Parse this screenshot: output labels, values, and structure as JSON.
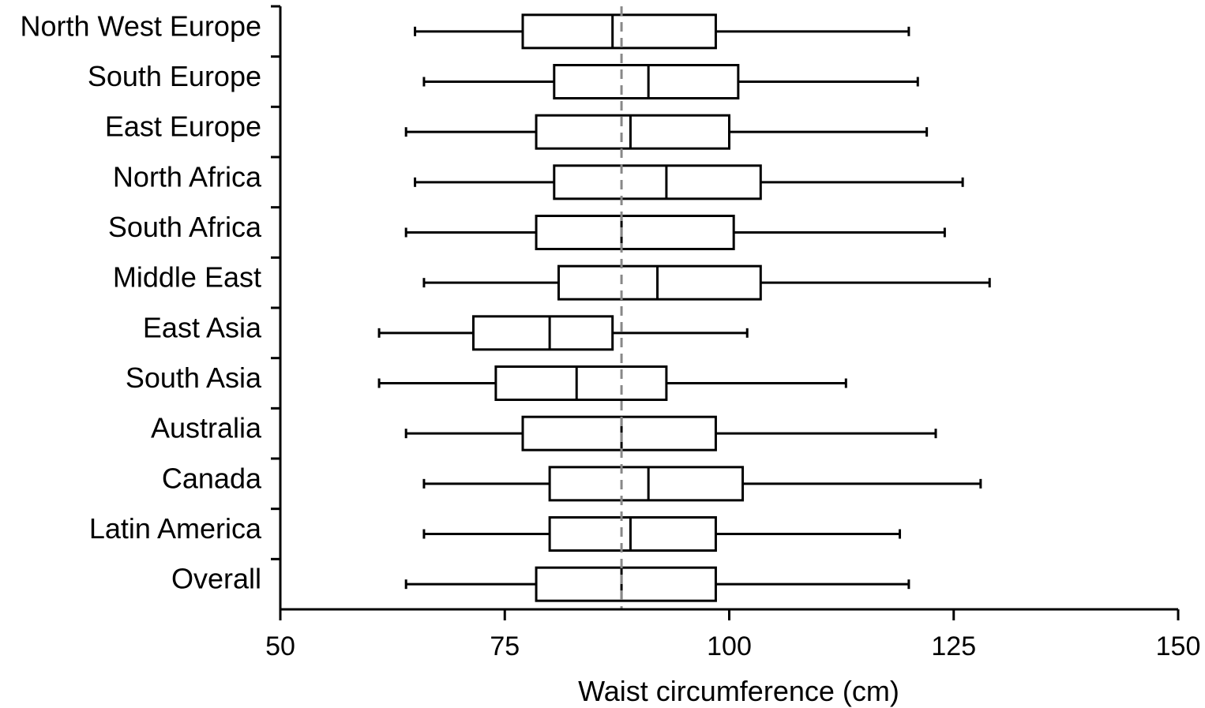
{
  "chart_data": {
    "type": "boxplot",
    "orientation": "horizontal",
    "title": "",
    "xlabel": "Waist circumference (cm)",
    "ylabel": "",
    "xlim": [
      50,
      150
    ],
    "xticks": [
      50,
      75,
      100,
      125,
      150
    ],
    "grid": false,
    "reference_line": {
      "value": 88,
      "style": "dashed",
      "color": "#888888"
    },
    "colors": {
      "box_stroke": "#000000",
      "box_fill": "#ffffff"
    },
    "categories": [
      "North West Europe",
      "South Europe",
      "East Europe",
      "North Africa",
      "South Africa",
      "Middle East",
      "East Asia",
      "South Asia",
      "Australia",
      "Canada",
      "Latin America",
      "Overall"
    ],
    "boxes": [
      {
        "min": 65,
        "q1": 77,
        "median": 87,
        "q3": 98.5,
        "max": 120
      },
      {
        "min": 66,
        "q1": 80.5,
        "median": 91,
        "q3": 101,
        "max": 121
      },
      {
        "min": 64,
        "q1": 78.5,
        "median": 89,
        "q3": 100,
        "max": 122
      },
      {
        "min": 65,
        "q1": 80.5,
        "median": 93,
        "q3": 103.5,
        "max": 126
      },
      {
        "min": 64,
        "q1": 78.5,
        "median": 88,
        "q3": 100.5,
        "max": 124
      },
      {
        "min": 66,
        "q1": 81,
        "median": 92,
        "q3": 103.5,
        "max": 129
      },
      {
        "min": 61,
        "q1": 71.5,
        "median": 80,
        "q3": 87,
        "max": 102
      },
      {
        "min": 61,
        "q1": 74,
        "median": 83,
        "q3": 93,
        "max": 113
      },
      {
        "min": 64,
        "q1": 77,
        "median": 88,
        "q3": 98.5,
        "max": 123
      },
      {
        "min": 66,
        "q1": 80,
        "median": 91,
        "q3": 101.5,
        "max": 128
      },
      {
        "min": 66,
        "q1": 80,
        "median": 89,
        "q3": 98.5,
        "max": 119
      },
      {
        "min": 64,
        "q1": 78.5,
        "median": 88,
        "q3": 98.5,
        "max": 120
      }
    ]
  }
}
